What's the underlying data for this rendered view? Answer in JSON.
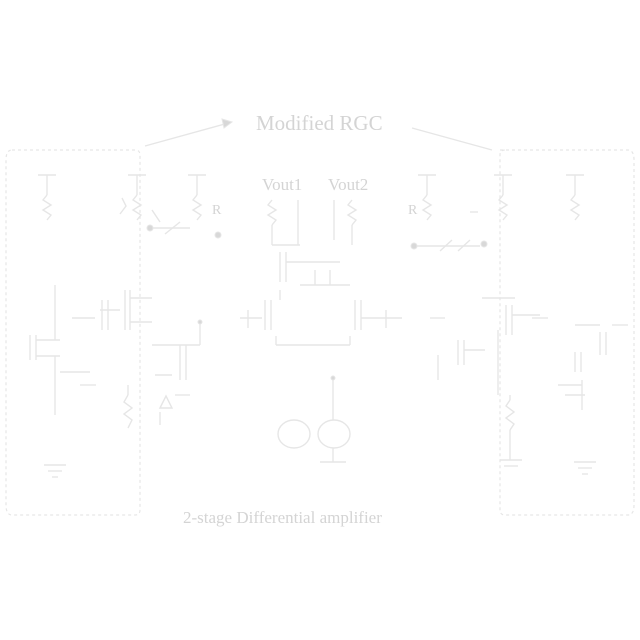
{
  "diagram": {
    "block_label": "Modified RGC",
    "stage_label": "2-stage Differential amplifier",
    "output_1": "Vout1",
    "output_2": "Vout2"
  },
  "colors": {
    "background": "#ffffff",
    "ink": "#e6e6e6"
  }
}
